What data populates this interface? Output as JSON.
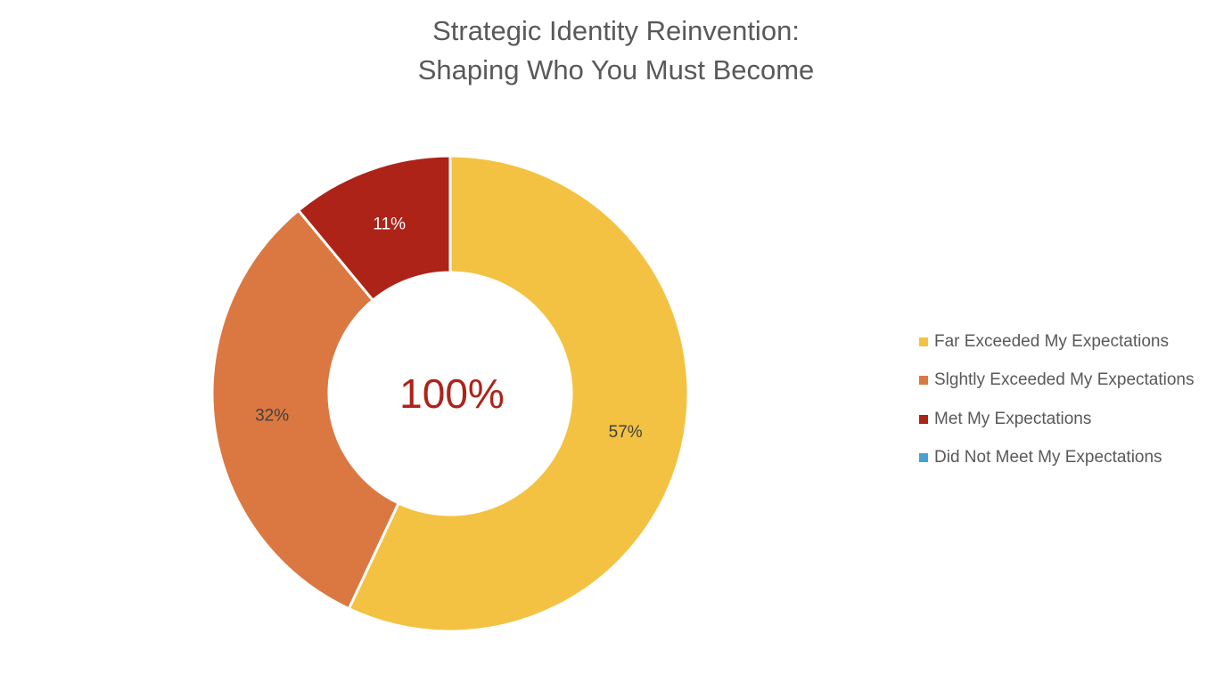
{
  "chart_data": {
    "type": "pie",
    "variant": "donut",
    "title": "Strategic Identity Reinvention: Shaping Who You Must Become",
    "title_lines": [
      "Strategic Identity Reinvention:",
      "Shaping Who You Must Become"
    ],
    "center_label": "100%",
    "center_label_color": "#AE2318",
    "categories": [
      "Far Exceeded My Expectations",
      "Slghtly Exceeded My Expectations",
      "Met My Expectations",
      "Did Not Meet My Expectations"
    ],
    "values": [
      57,
      32,
      11,
      0
    ],
    "data_labels": [
      "57%",
      "32%",
      "11%",
      ""
    ],
    "colors": [
      "#F4C242",
      "#DB7841",
      "#AE2318",
      "#4A9FD3"
    ],
    "label_colors": [
      "#404040",
      "#404040",
      "#ffffff",
      "#404040"
    ],
    "legend_position": "right",
    "start_angle_deg": 0,
    "direction": "clockwise"
  },
  "legend": {
    "items": [
      {
        "label": "Far Exceeded My Expectations",
        "color": "#F4C242"
      },
      {
        "label": "Slghtly Exceeded My Expectations",
        "color": "#DB7841"
      },
      {
        "label": "Met My Expectations",
        "color": "#AE2318"
      },
      {
        "label": "Did Not Meet My Expectations",
        "color": "#4A9FD3"
      }
    ]
  }
}
